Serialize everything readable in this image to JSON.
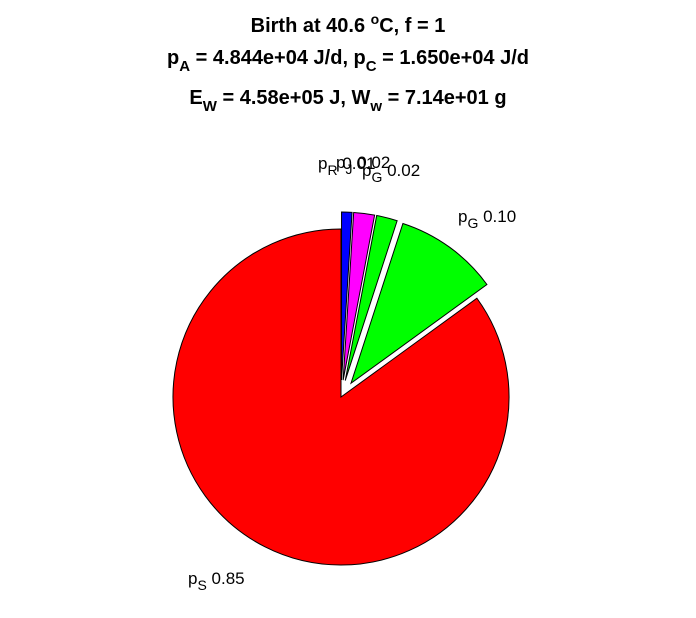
{
  "chart_data": {
    "type": "pie",
    "title": {
      "line1": {
        "text": "Birth at 40.6 ",
        "sup": "o",
        "tail": "C, f = 1"
      },
      "line2": [
        {
          "t": "p"
        },
        {
          "sub": "A"
        },
        {
          "t": " = 4.844e+04 J/d, p"
        },
        {
          "sub": "C"
        },
        {
          "t": " = 1.650e+04 J/d"
        }
      ],
      "line3": [
        {
          "t": "E"
        },
        {
          "sub": "W"
        },
        {
          "t": " = 4.58e+05 J, W"
        },
        {
          "sub": "w"
        },
        {
          "t": " = 7.14e+01 g"
        }
      ]
    },
    "slices": [
      {
        "base": "p",
        "sub": "S",
        "value": 0.85,
        "value_label": "0.85",
        "color": "#ff0000",
        "exploded": false
      },
      {
        "base": "p",
        "sub": "G",
        "value": 0.1,
        "value_label": "0.10",
        "color": "#00ff00",
        "exploded": true
      },
      {
        "base": "p",
        "sub": "G",
        "value": 0.02,
        "value_label": "0.02",
        "color": "#00ff00",
        "exploded": true
      },
      {
        "base": "p",
        "sub": "J",
        "value": 0.02,
        "value_label": "0.02",
        "color": "#ff00ff",
        "exploded": true
      },
      {
        "base": "p",
        "sub": "R",
        "value": 0.01,
        "value_label": "0.01",
        "color": "#0000ff",
        "exploded": true
      }
    ],
    "start_angle": "top",
    "direction": "clockwise",
    "legend": "none"
  }
}
